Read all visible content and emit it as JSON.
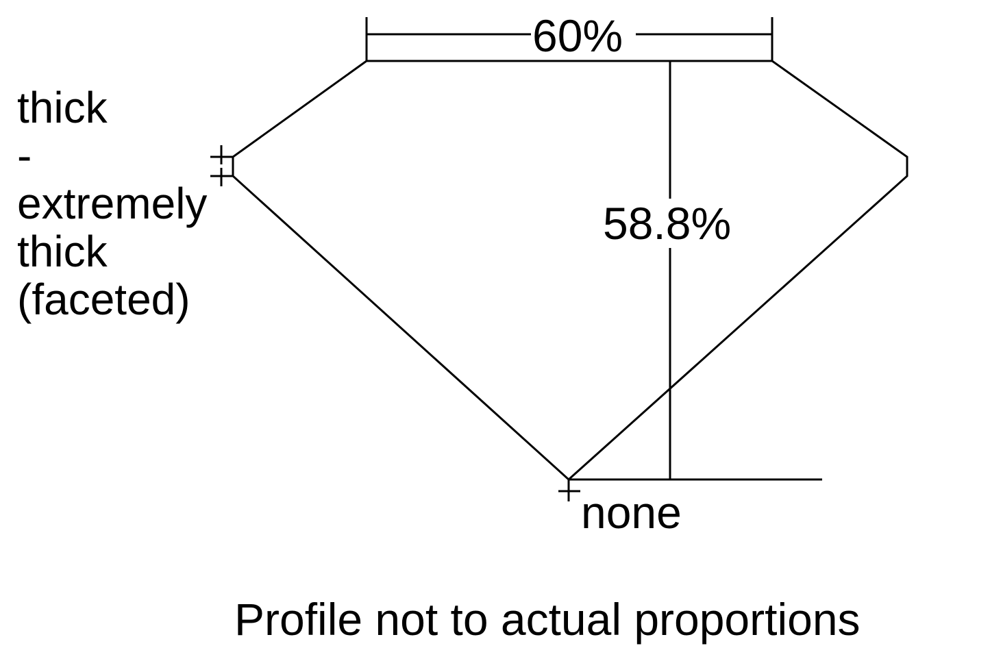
{
  "labels": {
    "table_pct": "60%",
    "depth_pct": "58.8%",
    "girdle_lines": [
      "thick",
      "-",
      "extremely",
      "thick",
      "(faceted)"
    ],
    "culet": "none",
    "footnote": "Profile not to actual proportions"
  },
  "colors": {
    "line": "#000000",
    "background": "#ffffff"
  }
}
